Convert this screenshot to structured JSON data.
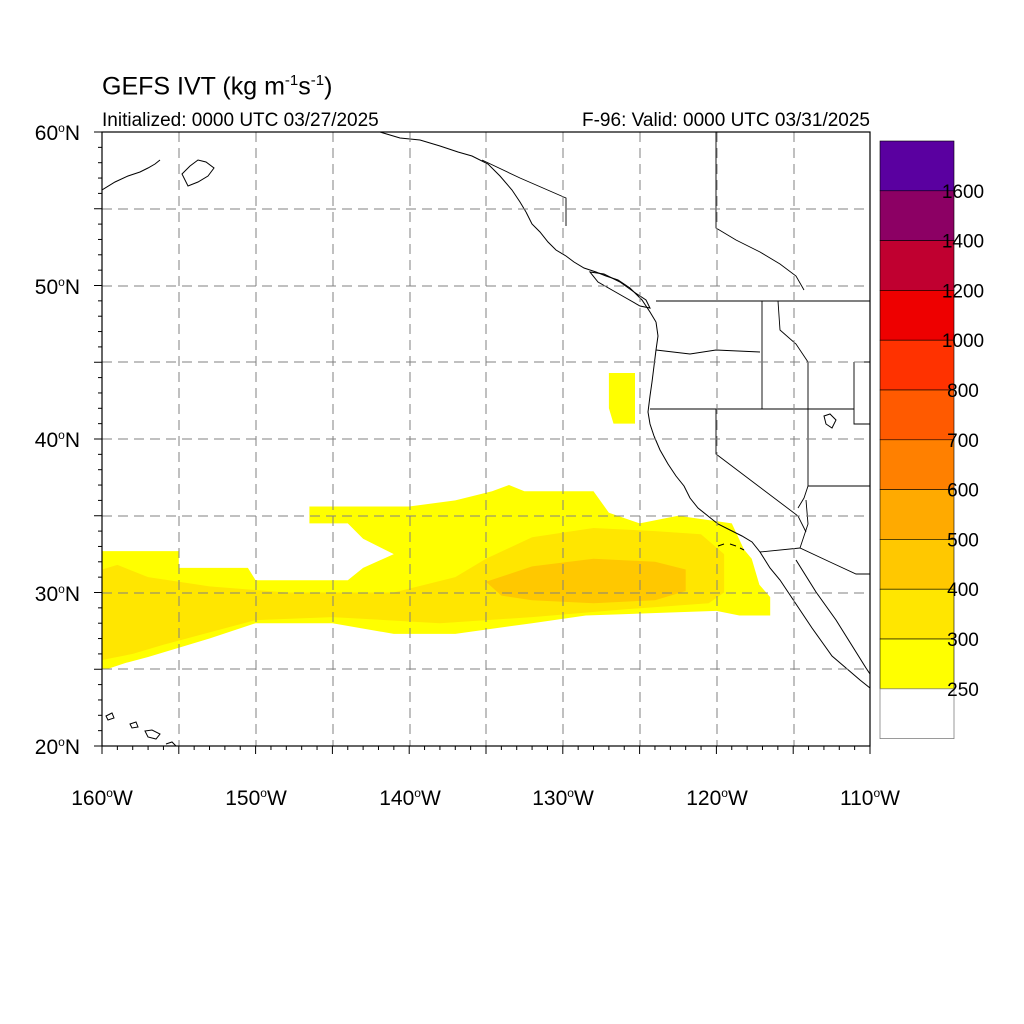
{
  "title": {
    "main": "GEFS IVT (kg m",
    "exp1": "-1",
    "mid": "s",
    "exp2": "-1",
    "end": ")"
  },
  "subtitle_left": "Initialized: 0000 UTC 03/27/2025",
  "subtitle_right": "F-96: Valid: 0000 UTC 03/31/2025",
  "lat_labels": [
    {
      "deg": "60",
      "hem": "N"
    },
    {
      "deg": "50",
      "hem": "N"
    },
    {
      "deg": "40",
      "hem": "N"
    },
    {
      "deg": "30",
      "hem": "N"
    },
    {
      "deg": "20",
      "hem": "N"
    }
  ],
  "lon_labels": [
    {
      "deg": "160",
      "hem": "W"
    },
    {
      "deg": "150",
      "hem": "W"
    },
    {
      "deg": "140",
      "hem": "W"
    },
    {
      "deg": "130",
      "hem": "W"
    },
    {
      "deg": "120",
      "hem": "W"
    },
    {
      "deg": "110",
      "hem": "W"
    }
  ],
  "colorbar": {
    "levels": [
      "250",
      "300",
      "400",
      "500",
      "600",
      "700",
      "800",
      "1000",
      "1200",
      "1400",
      "1600"
    ],
    "colors": [
      "#ffff00",
      "#ffe600",
      "#ffc800",
      "#ffaa00",
      "#ff8000",
      "#ff5a00",
      "#ff3200",
      "#ee0000",
      "#c00030",
      "#8c0064",
      "#5a00a0"
    ]
  },
  "map_extent": {
    "lon_min": -160,
    "lon_max": -110,
    "lat_min": 20,
    "lat_max": 60
  },
  "ivt_regions": [
    {
      "level": "250",
      "polygon": [
        [
          -160,
          32.7
        ],
        [
          -155,
          32.7
        ],
        [
          -155,
          31.6
        ],
        [
          -150.5,
          31.6
        ],
        [
          -150,
          30.8
        ],
        [
          -144,
          30.8
        ],
        [
          -143,
          31.6
        ],
        [
          -141,
          32.5
        ],
        [
          -143,
          33.5
        ],
        [
          -144,
          34.5
        ],
        [
          -146.5,
          34.5
        ],
        [
          -146.5,
          35.6
        ],
        [
          -140,
          35.6
        ],
        [
          -137,
          36.0
        ],
        [
          -134.6,
          36.6
        ],
        [
          -133.5,
          37.0
        ],
        [
          -132.5,
          36.6
        ],
        [
          -128,
          36.6
        ],
        [
          -127,
          35.2
        ],
        [
          -125,
          34.5
        ],
        [
          -122.5,
          35.0
        ],
        [
          -119,
          34.5
        ],
        [
          -118.2,
          32.8
        ],
        [
          -117.7,
          32.2
        ],
        [
          -117.2,
          30.5
        ],
        [
          -116.5,
          29.7
        ],
        [
          -116.5,
          28.5
        ],
        [
          -118.5,
          28.5
        ],
        [
          -120,
          28.8
        ],
        [
          -128.5,
          28.5
        ],
        [
          -132,
          28.0
        ],
        [
          -137,
          27.3
        ],
        [
          -141,
          27.3
        ],
        [
          -145,
          28.0
        ],
        [
          -150,
          28.0
        ],
        [
          -153,
          27.0
        ],
        [
          -155,
          26.4
        ],
        [
          -157,
          25.8
        ],
        [
          -158.5,
          25.4
        ],
        [
          -159.7,
          25.0
        ],
        [
          -160,
          25.0
        ]
      ]
    },
    {
      "level": "250",
      "polygon": [
        [
          -127,
          44.3
        ],
        [
          -125.3,
          44.3
        ],
        [
          -125.3,
          41.0
        ],
        [
          -126.7,
          41.0
        ],
        [
          -127,
          42.0
        ]
      ]
    },
    {
      "level": "300",
      "polygon": [
        [
          -160,
          31.5
        ],
        [
          -159,
          31.8
        ],
        [
          -157,
          31.0
        ],
        [
          -153,
          30.4
        ],
        [
          -148,
          30.0
        ],
        [
          -141,
          30.0
        ],
        [
          -137,
          31.0
        ],
        [
          -135,
          32.2
        ],
        [
          -132,
          33.6
        ],
        [
          -128,
          34.2
        ],
        [
          -124,
          34.0
        ],
        [
          -121,
          33.8
        ],
        [
          -119.5,
          32.5
        ],
        [
          -119.5,
          30.0
        ],
        [
          -120.5,
          29.3
        ],
        [
          -126,
          28.9
        ],
        [
          -132,
          28.4
        ],
        [
          -138,
          28.0
        ],
        [
          -145,
          28.4
        ],
        [
          -150,
          28.2
        ],
        [
          -153,
          27.4
        ],
        [
          -156,
          26.6
        ],
        [
          -158,
          26.0
        ],
        [
          -160,
          25.6
        ]
      ]
    },
    {
      "level": "400",
      "polygon": [
        [
          -135,
          30.7
        ],
        [
          -132,
          31.7
        ],
        [
          -128,
          32.2
        ],
        [
          -124,
          32.0
        ],
        [
          -122,
          31.5
        ],
        [
          -122,
          30.1
        ],
        [
          -124,
          29.5
        ],
        [
          -128,
          29.3
        ],
        [
          -132,
          29.5
        ],
        [
          -134,
          29.8
        ]
      ]
    }
  ]
}
